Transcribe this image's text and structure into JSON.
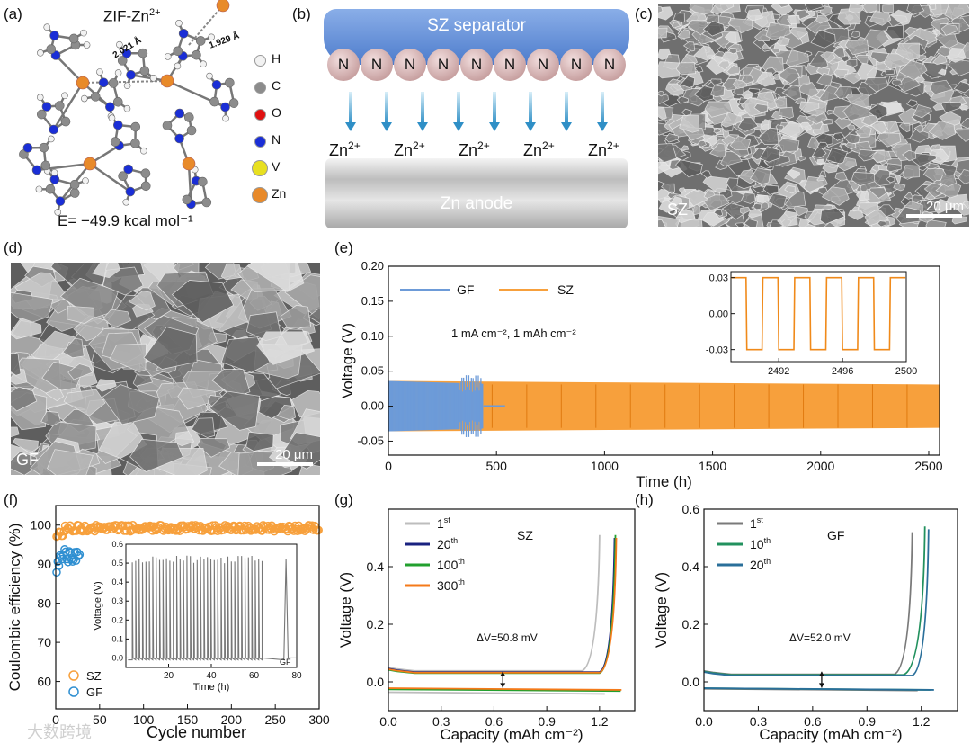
{
  "panel_labels": [
    "(a)",
    "(b)",
    "(c)",
    "(d)",
    "(e)",
    "(f)",
    "(g)",
    "(h)"
  ],
  "panel_a": {
    "title": "ZIF-Zn",
    "title_sup": "2+",
    "bond1": "2.021 Å",
    "bond2": "1.929 Å",
    "legend": [
      {
        "label": "H",
        "color": "#f2f2f2"
      },
      {
        "label": "C",
        "color": "#8c8c8c"
      },
      {
        "label": "O",
        "color": "#e01010"
      },
      {
        "label": "N",
        "color": "#1a2ed6"
      },
      {
        "label": "V",
        "color": "#e8e020"
      },
      {
        "label": "Zn",
        "color": "#e88a2a"
      }
    ],
    "energy": "E= −49.9 kcal mol⁻¹"
  },
  "panel_b": {
    "separator": "SZ separator",
    "atom": "N",
    "atom_count": 9,
    "ion": "Zn",
    "ion_sup": "2+",
    "ion_count": 5,
    "anode": "Zn anode"
  },
  "panel_c": {
    "label": "SZ",
    "scale": "20 μm"
  },
  "panel_d": {
    "label": "GF",
    "scale": "20 μm"
  },
  "chart_data": [
    {
      "id": "e",
      "type": "line",
      "xlabel": "Time (h)",
      "ylabel": "Voltage (V)",
      "xlim": [
        0,
        2550
      ],
      "ylim": [
        -0.07,
        0.2
      ],
      "xticks": [
        0,
        500,
        1000,
        1500,
        2000,
        2500
      ],
      "yticks": [
        "-0.05",
        "0.00",
        "0.05",
        "0.10",
        "0.15",
        "0.20"
      ],
      "annotation": "1 mA cm⁻², 1 mAh cm⁻²",
      "series": [
        {
          "name": "GF",
          "color": "#6d9bd8",
          "x": [
            0,
            440,
            540
          ],
          "amplitude": [
            0.036,
            0.032,
            0.0
          ]
        },
        {
          "name": "SZ",
          "color": "#f7a03c",
          "x": [
            0,
            2550
          ],
          "amplitude": [
            0.036,
            0.031
          ]
        }
      ],
      "inset": {
        "xlim": [
          2489,
          2500
        ],
        "ylim": [
          -0.04,
          0.035
        ],
        "xticks": [
          "2492",
          "2496",
          "2500"
        ],
        "yticks": [
          "0.03",
          "0.00",
          "-0.03"
        ],
        "amplitude": 0.03,
        "period": 2.0
      }
    },
    {
      "id": "f",
      "type": "scatter",
      "xlabel": "Cycle number",
      "ylabel": "Coulombic efficiency (%)",
      "xlim": [
        0,
        300
      ],
      "ylim": [
        53,
        105
      ],
      "xticks": [
        "0",
        "50",
        "100",
        "150",
        "200",
        "250",
        "300"
      ],
      "yticks": [
        "60",
        "70",
        "80",
        "90",
        "100"
      ],
      "series": [
        {
          "name": "SZ",
          "color": "#f7a03c",
          "x_range": [
            1,
            300
          ],
          "y_mean": 99.2
        },
        {
          "name": "GF",
          "color": "#2f8fd1",
          "x_range": [
            1,
            28
          ],
          "y_mean": 92.5
        }
      ],
      "inset": {
        "xlabel": "Time (h)",
        "ylabel": "Voltage (V)",
        "xlim": [
          0,
          80
        ],
        "ylim": [
          -0.05,
          0.6
        ],
        "xticks": [
          "20",
          "40",
          "60",
          "80"
        ],
        "yticks": [
          "0.0",
          "0.1",
          "0.2",
          "0.3",
          "0.4",
          "0.5",
          "0.6"
        ],
        "label": "GF"
      }
    },
    {
      "id": "g",
      "type": "line",
      "xlabel": "Capacity (mAh cm⁻²)",
      "ylabel": "Voltage (V)",
      "xlim": [
        0,
        1.4
      ],
      "ylim": [
        -0.1,
        0.6
      ],
      "xticks": [
        "0.0",
        "0.3",
        "0.6",
        "0.9",
        "1.2"
      ],
      "yticks": [
        "0.0",
        "0.2",
        "0.4"
      ],
      "title": "SZ",
      "annotation": "ΔV=50.8 mV",
      "series": [
        {
          "name": "1",
          "sup": "st",
          "color": "#bdbdbd",
          "end": 1.2,
          "plateau": 0.038,
          "lower": -0.042,
          "peak": 0.51
        },
        {
          "name": "20",
          "sup": "th",
          "color": "#1a2280",
          "end": 1.285,
          "plateau": 0.034,
          "lower": -0.03,
          "peak": 0.5
        },
        {
          "name": "100",
          "sup": "th",
          "color": "#22a02e",
          "end": 1.29,
          "plateau": 0.03,
          "lower": -0.032,
          "peak": 0.51
        },
        {
          "name": "300",
          "sup": "th",
          "color": "#f47a1a",
          "end": 1.295,
          "plateau": 0.032,
          "lower": -0.028,
          "peak": 0.5
        }
      ]
    },
    {
      "id": "h",
      "type": "line",
      "xlabel": "Capacity (mAh cm⁻²)",
      "ylabel": "Voltage (V)",
      "xlim": [
        0,
        1.4
      ],
      "ylim": [
        -0.1,
        0.6
      ],
      "xticks": [
        "0.0",
        "0.3",
        "0.6",
        "0.9",
        "1.2"
      ],
      "yticks": [
        "0.0",
        "0.2",
        "0.4",
        "0.6"
      ],
      "title": "GF",
      "annotation": "ΔV=52.0 mV",
      "series": [
        {
          "name": "1",
          "sup": "st",
          "color": "#7a7a7a",
          "end": 1.15,
          "plateau": 0.026,
          "lower": -0.03,
          "peak": 0.52
        },
        {
          "name": "10",
          "sup": "th",
          "color": "#22915e",
          "end": 1.22,
          "plateau": 0.024,
          "lower": -0.028,
          "peak": 0.54
        },
        {
          "name": "20",
          "sup": "th",
          "color": "#2a6f9a",
          "end": 1.24,
          "plateau": 0.022,
          "lower": -0.028,
          "peak": 0.53
        }
      ]
    }
  ],
  "watermark": "大数跨境"
}
